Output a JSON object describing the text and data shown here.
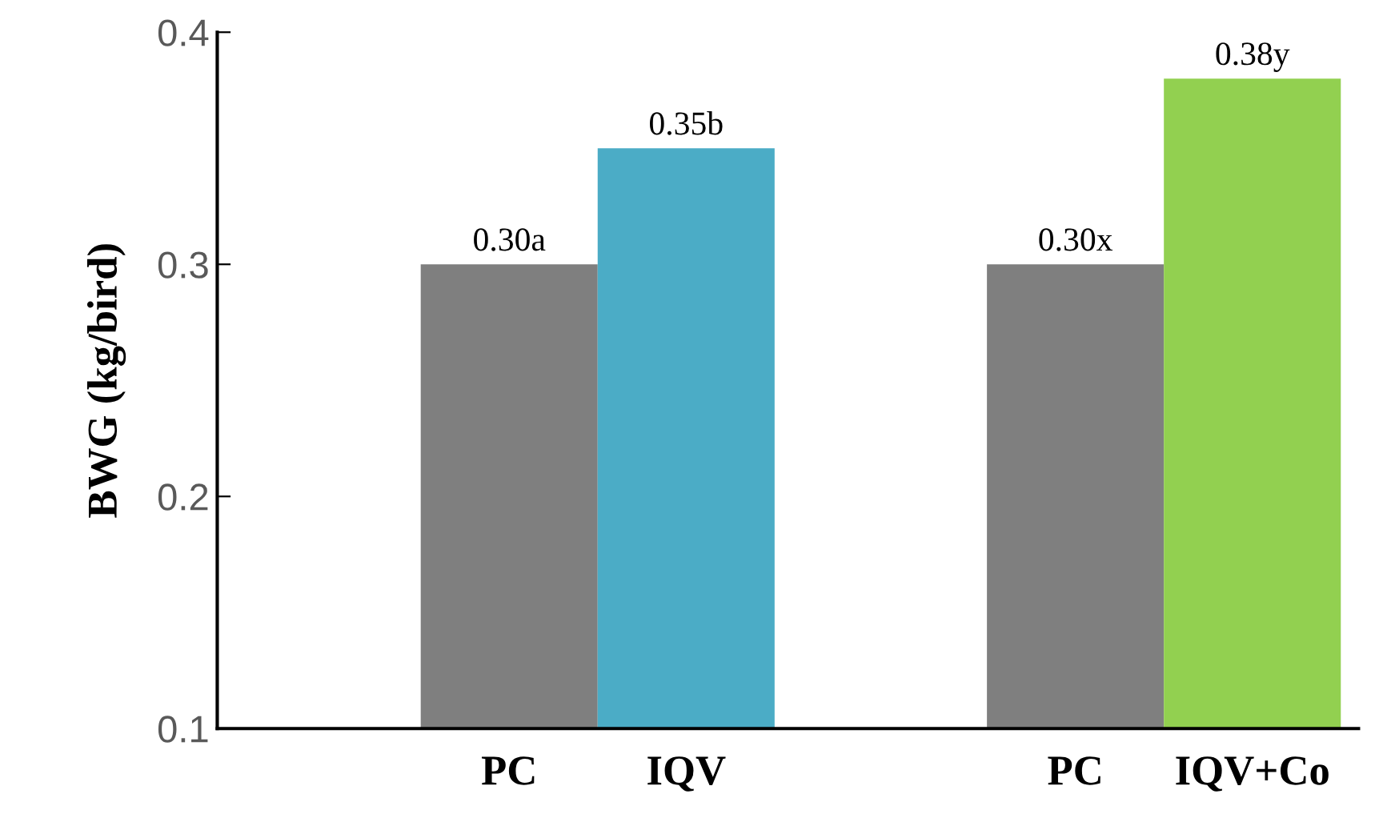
{
  "chart_data": {
    "type": "bar",
    "ylabel": "BWG (kg/bird)",
    "categories": [
      "PC",
      "IQV",
      "PC",
      "IQV+Co"
    ],
    "values": [
      0.3,
      0.35,
      0.3,
      0.38
    ],
    "colors": [
      "#7f7f7f",
      "#4bacc6",
      "#7f7f7f",
      "#92d050"
    ],
    "value_labels": [
      "0.30a",
      "0.35b",
      "0.30x",
      "0.38y"
    ],
    "ylim": [
      0.1,
      0.4
    ],
    "yticks": [
      0.1,
      0.2,
      0.3,
      0.4
    ],
    "grid": false,
    "legend": false
  }
}
